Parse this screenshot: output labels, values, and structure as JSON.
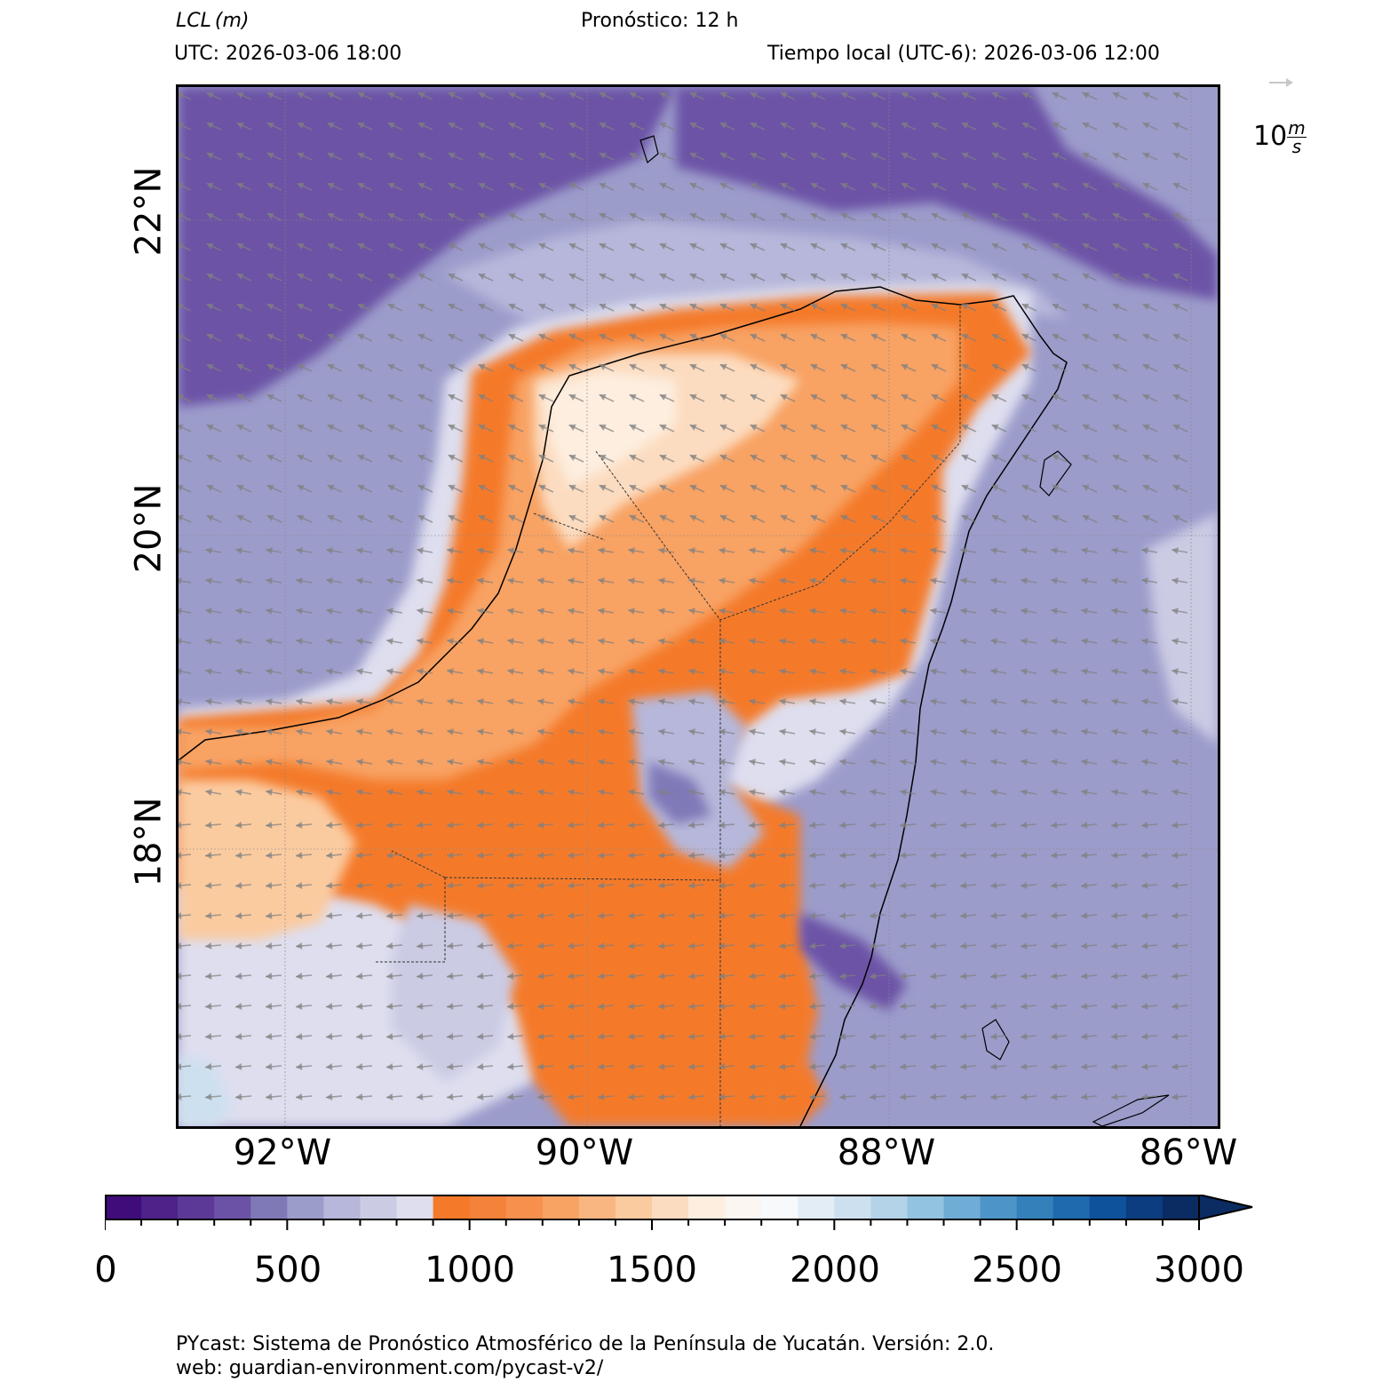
{
  "header": {
    "variable": "LCL",
    "units": "(m)",
    "forecast": "Pronóstico: 12 h",
    "utc": "UTC:  2026-03-06 18:00",
    "local_time": "Tiempo local (UTC-6): 2026-03-06 12:00"
  },
  "wind_key": {
    "label_value": "10",
    "label_units_num": "m",
    "label_units_den": "s"
  },
  "axes": {
    "lat_labels": [
      "22°N",
      "20°N",
      "18°N"
    ],
    "lon_labels": [
      "92°W",
      "90°W",
      "88°W",
      "86°W"
    ]
  },
  "colorbar": {
    "tick_labels": [
      "0",
      "500",
      "1000",
      "1500",
      "2000",
      "2500",
      "3000"
    ],
    "min": 0,
    "max": 3000,
    "step": 100,
    "extend": "max",
    "colors": [
      "#3f0c7a",
      "#4e2389",
      "#5c3897",
      "#6c52a6",
      "#8079b8",
      "#9c9ccb",
      "#b6b7da",
      "#cbcbe4",
      "#dedeef",
      "#f47a2a",
      "#f5823a",
      "#f6904c",
      "#f8a263",
      "#f9b680",
      "#fbcba0",
      "#fcdcc0",
      "#fdeedf",
      "#fbf6f1",
      "#f7f9fb",
      "#e2edf6",
      "#cde0ef",
      "#b4d3e8",
      "#92c3df",
      "#6fadd6",
      "#4d95c8",
      "#3480bb",
      "#1f6aae",
      "#0e529c",
      "#0b3d80",
      "#0a2c63"
    ]
  },
  "footer": {
    "line1": "PYcast: Sistema de Pronóstico Atmosférico de la Península de Yucatán. Versión: 2.0.",
    "line2": "web: guardian-environment.com/pycast-v2/"
  }
}
